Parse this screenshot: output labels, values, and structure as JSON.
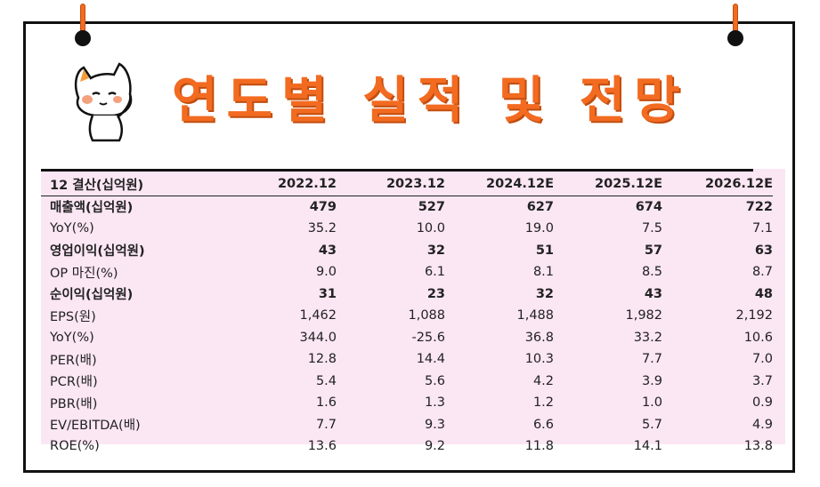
{
  "title": "연도별 실적 및 전망",
  "table": {
    "header": [
      "12 결산(십억원)",
      "2022.12",
      "2023.12",
      "2024.12E",
      "2025.12E",
      "2026.12E"
    ],
    "rows": [
      {
        "label": "매출액(십억원)",
        "values": [
          "479",
          "527",
          "627",
          "674",
          "722"
        ],
        "bold": true
      },
      {
        "label": "YoY(%)",
        "values": [
          "35.2",
          "10.0",
          "19.0",
          "7.5",
          "7.1"
        ],
        "bold": false
      },
      {
        "label": "영업이익(십억원)",
        "values": [
          "43",
          "32",
          "51",
          "57",
          "63"
        ],
        "bold": true
      },
      {
        "label": "OP 마진(%)",
        "values": [
          "9.0",
          "6.1",
          "8.1",
          "8.5",
          "8.7"
        ],
        "bold": false
      },
      {
        "label": "순이익(십억원)",
        "values": [
          "31",
          "23",
          "32",
          "43",
          "48"
        ],
        "bold": true
      },
      {
        "label": "EPS(원)",
        "values": [
          "1,462",
          "1,088",
          "1,488",
          "1,982",
          "2,192"
        ],
        "bold": false
      },
      {
        "label": "YoY(%)",
        "values": [
          "344.0",
          "-25.6",
          "36.8",
          "33.2",
          "10.6"
        ],
        "bold": false
      },
      {
        "label": "PER(배)",
        "values": [
          "12.8",
          "14.4",
          "10.3",
          "7.7",
          "7.0"
        ],
        "bold": false
      },
      {
        "label": "PCR(배)",
        "values": [
          "5.4",
          "5.6",
          "4.2",
          "3.9",
          "3.7"
        ],
        "bold": false
      },
      {
        "label": "PBR(배)",
        "values": [
          "1.6",
          "1.3",
          "1.2",
          "1.0",
          "0.9"
        ],
        "bold": false
      },
      {
        "label": "EV/EBITDA(배)",
        "values": [
          "7.7",
          "9.3",
          "6.6",
          "5.7",
          "4.9"
        ],
        "bold": false
      },
      {
        "label": "ROE(%)",
        "values": [
          "13.6",
          "9.2",
          "11.8",
          "14.1",
          "13.8"
        ],
        "bold": false
      }
    ]
  },
  "colors": {
    "accent": "#f26b21",
    "table_bg": "#fbe6f4"
  }
}
